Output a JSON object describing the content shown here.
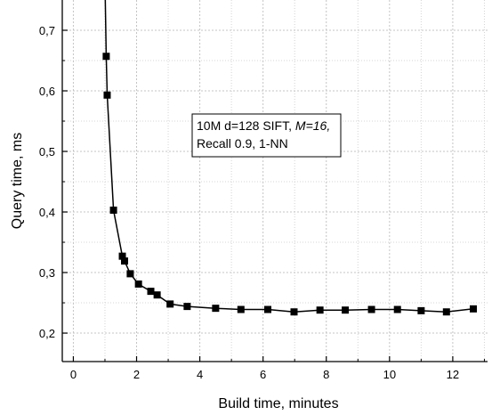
{
  "chart_data": {
    "type": "line",
    "xlabel": "Build time, minutes",
    "ylabel": "Query time, ms",
    "xlim": [
      -0.35,
      13.1
    ],
    "ylim": [
      0.153,
      0.75
    ],
    "x_ticks": [
      0,
      2,
      4,
      6,
      8,
      10,
      12
    ],
    "y_ticks": [
      0.2,
      0.3,
      0.4,
      0.5,
      0.6,
      0.7
    ],
    "x_tick_labels": [
      "0",
      "2",
      "4",
      "6",
      "8",
      "10",
      "12"
    ],
    "y_tick_labels": [
      "0,2",
      "0,3",
      "0,4",
      "0,5",
      "0,6",
      "0,7"
    ],
    "grid": true,
    "marker": "square",
    "line_color": "#000000",
    "annotation": {
      "line1_prefix": "10M d=128 SIFT, ",
      "line1_italic": "M=16,",
      "line2": "Recall 0.9, 1-NN"
    },
    "series": [
      {
        "x": [
          1.0,
          1.04,
          1.07,
          1.27,
          1.55,
          1.62,
          1.8,
          2.06,
          2.45,
          2.65,
          3.06,
          3.6,
          4.5,
          5.3,
          6.15,
          6.98,
          7.8,
          8.6,
          9.43,
          10.25,
          11.0,
          11.8,
          12.65
        ],
        "y": [
          0.78,
          0.657,
          0.593,
          0.403,
          0.327,
          0.319,
          0.298,
          0.281,
          0.269,
          0.263,
          0.248,
          0.244,
          0.241,
          0.239,
          0.239,
          0.235,
          0.238,
          0.238,
          0.239,
          0.239,
          0.237,
          0.235,
          0.24
        ],
        "markers_from_index": 1
      }
    ]
  }
}
